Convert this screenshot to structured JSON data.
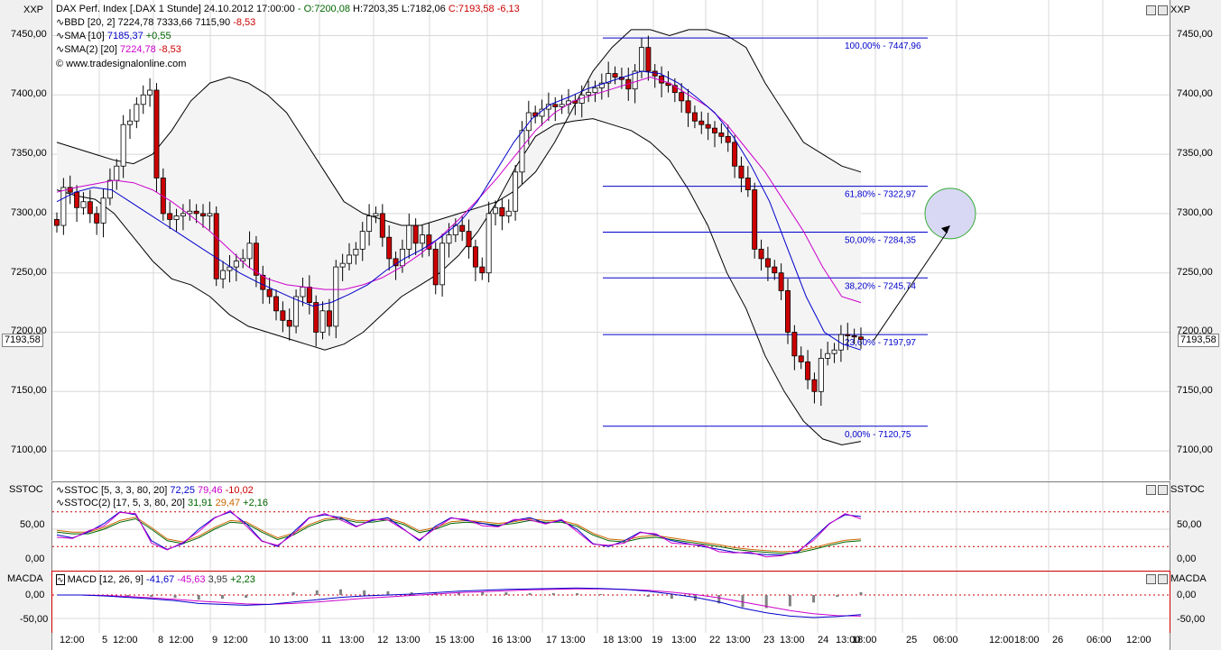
{
  "symbol_tag": "XXP",
  "header": {
    "instrument": "DAX Perf. Index [.DAX  1 Stunde] 24.10.2012 17:00:00",
    "open": "O:7200,08",
    "high": "H:7203,35",
    "low": "L:7182,06",
    "close": "C:7193,58",
    "change": "-6,13"
  },
  "legend_main": [
    {
      "name": "BBD [20, 2]",
      "v1": "7224,78",
      "v2": "7333,66",
      "v3": "7115,90",
      "v4": "-8,53",
      "color": "#000000"
    },
    {
      "name": "SMA [10]",
      "v1": "7185,37",
      "v2": "+0,55",
      "color": "#0000cc"
    },
    {
      "name": "SMA(2) [20]",
      "v1": "7224,78",
      "v2": "-8,53",
      "color": "#cc00cc"
    }
  ],
  "copyright": "© www.tradesignalonline.com",
  "last_price": "7193,58",
  "price_axis": {
    "labels": [
      "7450,00",
      "7400,00",
      "7350,00",
      "7300,00",
      "7250,00",
      "7200,00",
      "7150,00",
      "7100,00"
    ],
    "values": [
      7450,
      7400,
      7350,
      7300,
      7250,
      7200,
      7150,
      7100
    ]
  },
  "fib_levels": [
    {
      "label": "100,00% - 7447,96",
      "value": 7447.96
    },
    {
      "label": "61,80% - 7322,97",
      "value": 7322.97
    },
    {
      "label": "50,00% - 7284,35",
      "value": 7284.35
    },
    {
      "label": "38,20% - 7245,74",
      "value": 7245.74
    },
    {
      "label": "23,60% - 7197,97",
      "value": 7197.97
    },
    {
      "label": "0,00% - 7120,75",
      "value": 7120.75
    }
  ],
  "sstoc": {
    "tag": "SSTOC",
    "line1": {
      "name": "SSTOC [5, 3, 3, 80, 20]",
      "v1": "72,25",
      "v2": "79,46",
      "v3": "-10,02"
    },
    "line2": {
      "name": "SSTOC(2) [17, 5, 3, 80, 20]",
      "v1": "31,91",
      "v2": "29,47",
      "v3": "+2,16"
    },
    "axis_labels": [
      "50,00",
      "0,00"
    ],
    "axis_values": [
      50,
      0
    ]
  },
  "macd": {
    "tag": "MACDA",
    "line": {
      "name": "MACD [12, 26, 9]",
      "v1": "-41,67",
      "v2": "-45,63",
      "v3": "3,95",
      "v4": "+2,23"
    },
    "axis_labels": [
      "0,00",
      "-50,00"
    ],
    "axis_values": [
      0,
      -50
    ]
  },
  "time_axis": [
    "12:00",
    "5",
    "12:00",
    "8",
    "12:00",
    "9",
    "12:00",
    "10",
    "13:00",
    "11",
    "13:00",
    "12",
    "13:00",
    "15",
    "13:00",
    "16",
    "13:00",
    "17",
    "13:00",
    "18",
    "13:00",
    "19",
    "13:00",
    "22",
    "13:00",
    "23",
    "13:00",
    "24",
    "13:00",
    "18:00",
    "25",
    "06:00",
    "12:00",
    "18:00",
    "26",
    "06:00",
    "12:00"
  ],
  "chart_data": {
    "type": "candlestick",
    "title": "DAX Perf. Index [.DAX  1 Stunde]",
    "ylim": [
      7075,
      7480
    ],
    "closes": [
      7290,
      7322,
      7318,
      7305,
      7310,
      7300,
      7292,
      7313,
      7328,
      7340,
      7375,
      7378,
      7392,
      7400,
      7404,
      7330,
      7300,
      7295,
      7298,
      7300,
      7302,
      7300,
      7298,
      7300,
      7245,
      7252,
      7255,
      7260,
      7262,
      7275,
      7248,
      7236,
      7230,
      7218,
      7210,
      7205,
      7230,
      7238,
      7225,
      7200,
      7218,
      7205,
      7255,
      7258,
      7265,
      7270,
      7285,
      7298,
      7300,
      7280,
      7262,
      7256,
      7270,
      7290,
      7275,
      7282,
      7270,
      7240,
      7275,
      7282,
      7290,
      7285,
      7272,
      7255,
      7250,
      7300,
      7305,
      7298,
      7302,
      7335,
      7370,
      7385,
      7382,
      7388,
      7392,
      7390,
      7392,
      7395,
      7393,
      7400,
      7402,
      7406,
      7410,
      7418,
      7415,
      7413,
      7405,
      7420,
      7440,
      7420,
      7416,
      7410,
      7408,
      7402,
      7395,
      7385,
      7378,
      7375,
      7372,
      7368,
      7365,
      7360,
      7340,
      7330,
      7320,
      7270,
      7262,
      7255,
      7250,
      7235,
      7200,
      7180,
      7175,
      7160,
      7150,
      7178,
      7182,
      7185,
      7198,
      7197,
      7196,
      7194
    ],
    "bb_upper": [
      7360,
      7355,
      7350,
      7345,
      7342,
      7350,
      7370,
      7395,
      7410,
      7415,
      7410,
      7400,
      7385,
      7360,
      7335,
      7310,
      7300,
      7295,
      7290,
      7290,
      7295,
      7300,
      7305,
      7310,
      7320,
      7335,
      7360,
      7390,
      7420,
      7440,
      7455,
      7455,
      7450,
      7455,
      7455,
      7450,
      7440,
      7410,
      7385,
      7360,
      7350,
      7340,
      7335
    ],
    "bb_lower": [
      7320,
      7315,
      7312,
      7300,
      7280,
      7260,
      7245,
      7240,
      7230,
      7215,
      7205,
      7200,
      7195,
      7190,
      7185,
      7190,
      7200,
      7215,
      7230,
      7240,
      7250,
      7265,
      7285,
      7310,
      7340,
      7365,
      7375,
      7378,
      7380,
      7375,
      7370,
      7360,
      7345,
      7320,
      7290,
      7250,
      7220,
      7180,
      7150,
      7125,
      7110,
      7105,
      7108
    ],
    "sma10": [
      7310,
      7318,
      7322,
      7320,
      7310,
      7300,
      7290,
      7280,
      7270,
      7260,
      7250,
      7242,
      7235,
      7228,
      7222,
      7225,
      7232,
      7240,
      7252,
      7262,
      7270,
      7280,
      7292,
      7310,
      7335,
      7360,
      7380,
      7392,
      7398,
      7405,
      7410,
      7415,
      7420,
      7418,
      7410,
      7398,
      7385,
      7365,
      7340,
      7310,
      7270,
      7230,
      7200,
      7190,
      7185
    ],
    "sma20": [
      7318,
      7322,
      7325,
      7328,
      7326,
      7320,
      7310,
      7298,
      7285,
      7270,
      7255,
      7245,
      7240,
      7238,
      7236,
      7236,
      7240,
      7246,
      7255,
      7266,
      7280,
      7295,
      7312,
      7330,
      7350,
      7370,
      7385,
      7395,
      7400,
      7405,
      7410,
      7415,
      7410,
      7400,
      7390,
      7375,
      7355,
      7335,
      7310,
      7285,
      7255,
      7230,
      7225
    ],
    "sstoc_fast": [
      40,
      35,
      45,
      60,
      80,
      75,
      30,
      15,
      25,
      50,
      70,
      80,
      60,
      30,
      20,
      45,
      70,
      75,
      70,
      55,
      65,
      70,
      50,
      30,
      55,
      70,
      65,
      60,
      55,
      65,
      70,
      60,
      65,
      50,
      25,
      20,
      30,
      45,
      40,
      30,
      25,
      20,
      15,
      10,
      8,
      6,
      5,
      10,
      35,
      60,
      75,
      72
    ],
    "sstoc_slow": [
      45,
      42,
      42,
      50,
      62,
      68,
      50,
      30,
      25,
      35,
      50,
      62,
      60,
      45,
      32,
      40,
      55,
      65,
      68,
      62,
      62,
      66,
      58,
      44,
      50,
      60,
      62,
      60,
      57,
      60,
      65,
      62,
      62,
      55,
      40,
      30,
      28,
      34,
      36,
      32,
      28,
      24,
      20,
      15,
      12,
      10,
      8,
      9,
      15,
      22,
      28,
      30
    ],
    "macd": [
      0,
      0,
      -2,
      -5,
      -8,
      -12,
      -18,
      -20,
      -22,
      -20,
      -15,
      -10,
      -5,
      -2,
      0,
      2,
      5,
      8,
      10,
      12,
      13,
      14,
      15,
      14,
      12,
      8,
      2,
      -5,
      -15,
      -28,
      -38,
      -45,
      -48,
      -46,
      -42
    ],
    "macd_signal": [
      0,
      0,
      -1,
      -3,
      -6,
      -9,
      -13,
      -16,
      -19,
      -20,
      -18,
      -15,
      -11,
      -7,
      -4,
      -1,
      2,
      5,
      7,
      9,
      11,
      12,
      13,
      13,
      12,
      10,
      6,
      1,
      -6,
      -15,
      -24,
      -33,
      -40,
      -44,
      -45
    ]
  }
}
